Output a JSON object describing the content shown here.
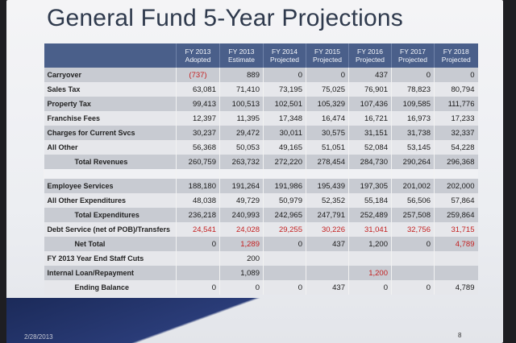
{
  "title": "General Fund 5-Year Projections",
  "columns": [
    [
      "FY 2013",
      "Adopted"
    ],
    [
      "FY 2013",
      "Estimate"
    ],
    [
      "FY 2014",
      "Projected"
    ],
    [
      "FY 2015",
      "Projected"
    ],
    [
      "FY 2016",
      "Projected"
    ],
    [
      "FY 2017",
      "Projected"
    ],
    [
      "FY 2018",
      "Projected"
    ]
  ],
  "rows": [
    {
      "label": "Carryover",
      "cells": [
        "(737)",
        "889",
        "0",
        "0",
        "437",
        "0",
        "0"
      ],
      "red": [
        0
      ]
    },
    {
      "label": "Sales Tax",
      "cells": [
        "63,081",
        "71,410",
        "73,195",
        "75,025",
        "76,901",
        "78,823",
        "80,794"
      ]
    },
    {
      "label": "Property Tax",
      "cells": [
        "99,413",
        "100,513",
        "102,501",
        "105,329",
        "107,436",
        "109,585",
        "111,776"
      ]
    },
    {
      "label": "Franchise Fees",
      "cells": [
        "12,397",
        "11,395",
        "17,348",
        "16,474",
        "16,721",
        "16,973",
        "17,233"
      ]
    },
    {
      "label": "Charges for Current Svcs",
      "cells": [
        "30,237",
        "29,472",
        "30,011",
        "30,575",
        "31,151",
        "31,738",
        "32,337"
      ]
    },
    {
      "label": "All Other",
      "cells": [
        "56,368",
        "50,053",
        "49,165",
        "51,051",
        "52,084",
        "53,145",
        "54,228"
      ]
    },
    {
      "label": "Total Revenues",
      "indent": true,
      "cells": [
        "260,759",
        "263,732",
        "272,220",
        "278,454",
        "284,730",
        "290,264",
        "296,368"
      ]
    },
    {
      "gap": true
    },
    {
      "label": "Employee Services",
      "cells": [
        "188,180",
        "191,264",
        "191,986",
        "195,439",
        "197,305",
        "201,002",
        "202,000"
      ]
    },
    {
      "label": "All Other Expenditures",
      "cells": [
        "48,038",
        "49,729",
        "50,979",
        "52,352",
        "55,184",
        "56,506",
        "57,864"
      ]
    },
    {
      "label": "Total Expenditures",
      "indent": true,
      "cells": [
        "236,218",
        "240,993",
        "242,965",
        "247,791",
        "252,489",
        "257,508",
        "259,864"
      ]
    },
    {
      "label": "Debt Service (net of POB)/Transfers",
      "cells": [
        "24,541",
        "24,028",
        "29,255",
        "30,226",
        "31,041",
        "32,756",
        "31,715"
      ],
      "red": [
        0,
        1,
        2,
        3,
        4,
        5,
        6
      ]
    },
    {
      "label": "Net Total",
      "indent": true,
      "cells": [
        "0",
        "1,289",
        "0",
        "437",
        "1,200",
        "0",
        "4,789"
      ],
      "red": [
        1,
        6
      ]
    },
    {
      "label": "FY 2013 Year End Staff Cuts",
      "cells": [
        "",
        "200",
        "",
        "",
        "",
        "",
        ""
      ]
    },
    {
      "label": "Internal Loan/Repayment",
      "cells": [
        "",
        "1,089",
        "",
        "",
        "1,200",
        "",
        ""
      ],
      "red": [
        4
      ]
    },
    {
      "label": "Ending Balance",
      "indent": true,
      "cells": [
        "0",
        "0",
        "0",
        "437",
        "0",
        "0",
        "4,789"
      ]
    }
  ],
  "footer": {
    "date": "2/28/2013",
    "page": "8"
  }
}
